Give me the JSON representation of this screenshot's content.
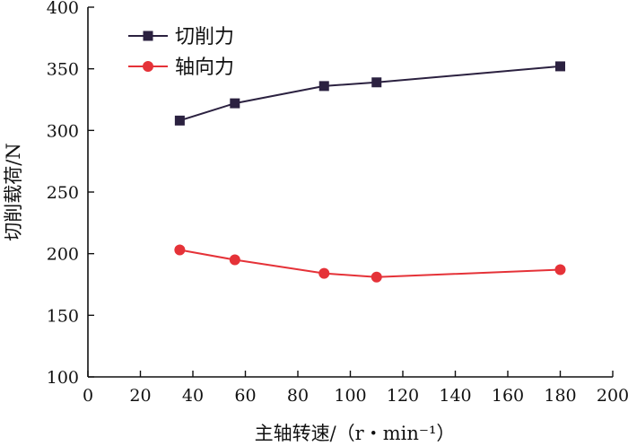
{
  "chart_data": {
    "type": "line",
    "title": "",
    "xlabel": "主轴转速/（r・min⁻¹）",
    "ylabel": "切削载荷/N",
    "xlim": [
      0,
      200
    ],
    "ylim": [
      100,
      400
    ],
    "xticks": [
      0,
      20,
      40,
      60,
      80,
      100,
      120,
      140,
      160,
      180,
      200
    ],
    "yticks": [
      100,
      150,
      200,
      250,
      300,
      350,
      400
    ],
    "grid": false,
    "legend_position": "top-left",
    "series": [
      {
        "name": "切削力",
        "color": "#2b2140",
        "marker": "square",
        "x": [
          35,
          56,
          90,
          110,
          180
        ],
        "y": [
          308,
          322,
          336,
          339,
          352
        ]
      },
      {
        "name": "轴向力",
        "color": "#e53238",
        "marker": "circle",
        "x": [
          35,
          56,
          90,
          110,
          180
        ],
        "y": [
          203,
          195,
          184,
          181,
          187
        ]
      }
    ]
  }
}
